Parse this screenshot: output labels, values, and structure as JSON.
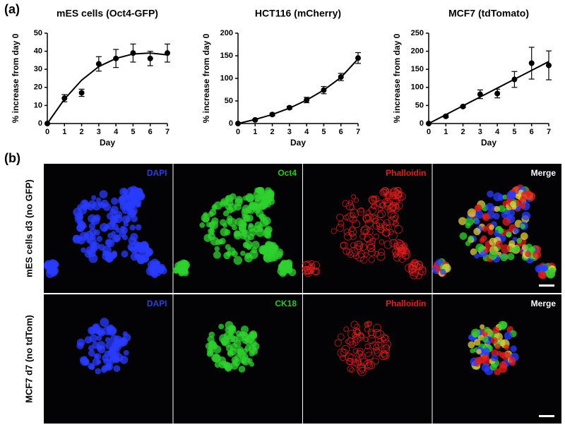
{
  "panel_labels": [
    "(a)",
    "(b)"
  ],
  "chart_data": [
    {
      "type": "line",
      "title": "mES cells (Oct4-GFP)",
      "x_label": "Day",
      "y_label": "% increase from day 0",
      "x": [
        0,
        1,
        2,
        3,
        4,
        5,
        6,
        7
      ],
      "xlim": [
        0,
        7
      ],
      "xticks": [
        0,
        1,
        2,
        3,
        4,
        5,
        6,
        7
      ],
      "ylim": [
        0,
        50
      ],
      "yticks": [
        0,
        10,
        20,
        30,
        40,
        50
      ],
      "series": [
        {
          "color": "#000000",
          "values": [
            0,
            14,
            17,
            33,
            36,
            39,
            36,
            39
          ],
          "errors": [
            0,
            2,
            2,
            4,
            5,
            5,
            4,
            5
          ]
        }
      ],
      "fit": {
        "color": "#000000",
        "values": [
          0,
          13.5,
          24,
          31.5,
          36,
          38.5,
          39,
          38
        ]
      }
    },
    {
      "type": "line",
      "title": "HCT116 (mCherry)",
      "x_label": "Day",
      "y_label": "% increase from day 0",
      "x": [
        0,
        1,
        2,
        3,
        4,
        5,
        6,
        7
      ],
      "xlim": [
        0,
        7
      ],
      "xticks": [
        0,
        1,
        2,
        3,
        4,
        5,
        6,
        7
      ],
      "ylim": [
        0,
        200
      ],
      "yticks": [
        0,
        50,
        100,
        150,
        200
      ],
      "series": [
        {
          "color": "#000000",
          "values": [
            0,
            8,
            20,
            35,
            52,
            74,
            103,
            145
          ],
          "errors": [
            0,
            2,
            3,
            3,
            6,
            8,
            8,
            12
          ]
        }
      ],
      "fit": {
        "color": "#000000",
        "values": [
          0,
          9,
          20,
          34,
          52,
          74,
          102,
          143
        ]
      }
    },
    {
      "type": "line",
      "title": "MCF7 (tdTomato)",
      "x_label": "Day",
      "y_label": "% increase from day 0",
      "x": [
        0,
        1,
        2,
        3,
        4,
        5,
        6,
        7
      ],
      "xlim": [
        0,
        7
      ],
      "xticks": [
        0,
        1,
        2,
        3,
        4,
        5,
        6,
        7
      ],
      "ylim": [
        0,
        250
      ],
      "yticks": [
        0,
        50,
        100,
        150,
        200,
        250
      ],
      "series": [
        {
          "color": "#000000",
          "values": [
            0,
            20,
            47,
            81,
            83,
            122,
            167,
            161
          ],
          "errors": [
            0,
            3,
            3,
            12,
            12,
            22,
            44,
            40
          ]
        }
      ],
      "fit": {
        "color": "#000000",
        "values": [
          0,
          24.5,
          49,
          73.5,
          98,
          122.5,
          147,
          171.5
        ]
      }
    }
  ],
  "microscopy": {
    "rows": [
      {
        "label": "mES cells d3 (no GFP)",
        "channels": [
          "DAPI",
          "Oct4",
          "Phalloidin",
          "Merge"
        ]
      },
      {
        "label": "MCF7 d7 (no tdTom)",
        "channels": [
          "DAPI",
          "CK18",
          "Phalloidin",
          "Merge"
        ]
      }
    ]
  }
}
